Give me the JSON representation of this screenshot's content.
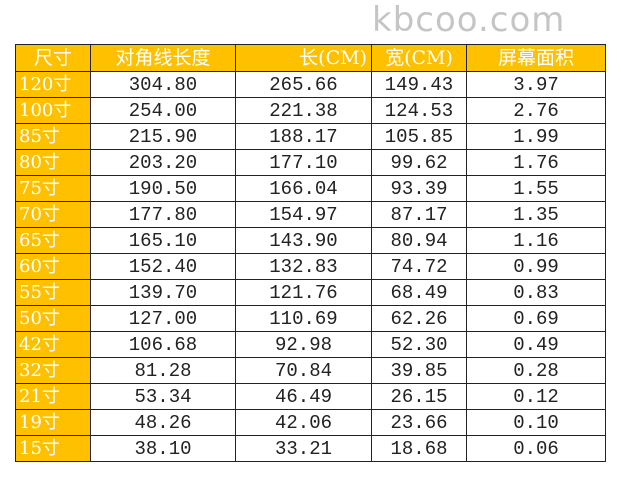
{
  "table": {
    "headers": [
      "尺寸",
      "对角线长度",
      "长(CM)",
      "宽(CM)",
      "屏幕面积"
    ],
    "rows": [
      [
        "120寸",
        "304.80",
        "265.66",
        "149.43",
        "3.97"
      ],
      [
        "100寸",
        "254.00",
        "221.38",
        "124.53",
        "2.76"
      ],
      [
        "85寸",
        "215.90",
        "188.17",
        "105.85",
        "1.99"
      ],
      [
        "80寸",
        "203.20",
        "177.10",
        "99.62",
        "1.76"
      ],
      [
        "75寸",
        "190.50",
        "166.04",
        "93.39",
        "1.55"
      ],
      [
        "70寸",
        "177.80",
        "154.97",
        "87.17",
        "1.35"
      ],
      [
        "65寸",
        "165.10",
        "143.90",
        "80.94",
        "1.16"
      ],
      [
        "60寸",
        "152.40",
        "132.83",
        "74.72",
        "0.99"
      ],
      [
        "55寸",
        "139.70",
        "121.76",
        "68.49",
        "0.83"
      ],
      [
        "50寸",
        "127.00",
        "110.69",
        "62.26",
        "0.69"
      ],
      [
        "42寸",
        "106.68",
        "92.98",
        "52.30",
        "0.49"
      ],
      [
        "32寸",
        "81.28",
        "70.84",
        "39.85",
        "0.28"
      ],
      [
        "21寸",
        "53.34",
        "46.49",
        "26.15",
        "0.12"
      ],
      [
        "19寸",
        "48.26",
        "42.06",
        "23.66",
        "0.10"
      ],
      [
        "15寸",
        "38.10",
        "33.21",
        "18.68",
        "0.06"
      ]
    ]
  },
  "watermark": "kbcoo.com",
  "colors": {
    "header_bg": "#FFC000",
    "header_text": "#FFFFFF",
    "border": "#222222"
  }
}
